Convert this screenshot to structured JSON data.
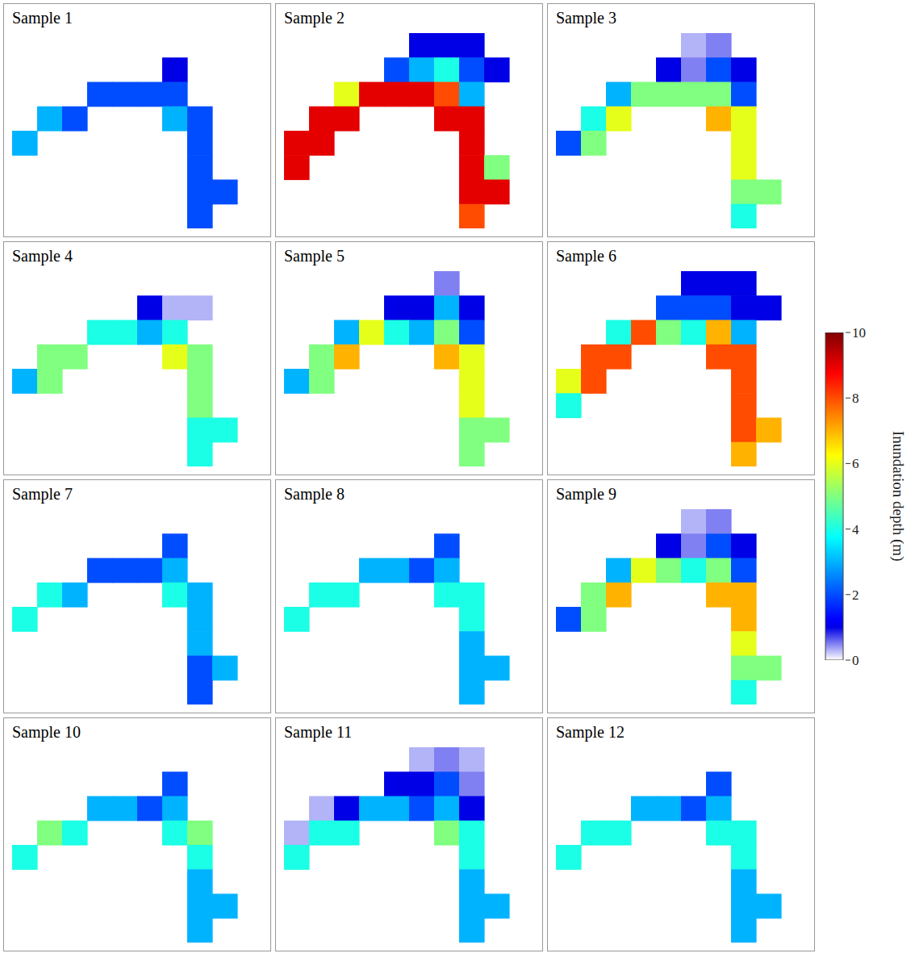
{
  "chart_data": [
    {
      "type": "heatmap",
      "title": "Sample 1",
      "tick_labels": false,
      "cells": [
        [
          null,
          null,
          null,
          null,
          null,
          null,
          null,
          null,
          null,
          null
        ],
        [
          null,
          null,
          null,
          null,
          null,
          null,
          1,
          null,
          null,
          null
        ],
        [
          null,
          null,
          null,
          2,
          2,
          2,
          2,
          null,
          null,
          null
        ],
        [
          null,
          3,
          2,
          null,
          null,
          null,
          3,
          2,
          null,
          null
        ],
        [
          3,
          null,
          null,
          null,
          null,
          null,
          null,
          2,
          null,
          null
        ],
        [
          null,
          null,
          null,
          null,
          null,
          null,
          null,
          2,
          null,
          null
        ],
        [
          null,
          null,
          null,
          null,
          null,
          null,
          null,
          2,
          2,
          null
        ],
        [
          null,
          null,
          null,
          null,
          null,
          null,
          null,
          2,
          null,
          null
        ]
      ]
    },
    {
      "type": "heatmap",
      "title": "Sample 2",
      "tick_labels": false,
      "cells": [
        [
          null,
          null,
          null,
          null,
          null,
          1,
          1,
          1,
          null,
          null
        ],
        [
          null,
          null,
          null,
          null,
          2,
          3,
          4,
          2,
          1,
          null
        ],
        [
          null,
          null,
          6,
          9,
          9,
          9,
          8,
          3,
          null,
          null
        ],
        [
          null,
          9,
          9,
          null,
          null,
          null,
          9,
          9,
          null,
          null
        ],
        [
          9,
          9,
          null,
          null,
          null,
          null,
          null,
          9,
          null,
          null
        ],
        [
          9,
          null,
          null,
          null,
          null,
          null,
          null,
          9,
          5,
          null
        ],
        [
          null,
          null,
          null,
          null,
          null,
          null,
          null,
          9,
          9,
          null
        ],
        [
          null,
          null,
          null,
          null,
          null,
          null,
          null,
          8,
          null,
          null
        ]
      ]
    },
    {
      "type": "heatmap",
      "title": "Sample 3",
      "tick_labels": false,
      "cells": [
        [
          null,
          null,
          null,
          null,
          null,
          0.3,
          0.5,
          null,
          null,
          null
        ],
        [
          null,
          null,
          null,
          null,
          1,
          0.5,
          2,
          1,
          null,
          null
        ],
        [
          null,
          null,
          3,
          5,
          5,
          5,
          5,
          2,
          null,
          null
        ],
        [
          null,
          4,
          6,
          null,
          null,
          null,
          7,
          6,
          null,
          null
        ],
        [
          2,
          5,
          null,
          null,
          null,
          null,
          null,
          6,
          null,
          null
        ],
        [
          null,
          null,
          null,
          null,
          null,
          null,
          null,
          6,
          null,
          null
        ],
        [
          null,
          null,
          null,
          null,
          null,
          null,
          null,
          5,
          5,
          null
        ],
        [
          null,
          null,
          null,
          null,
          null,
          null,
          null,
          4,
          null,
          null
        ]
      ]
    },
    {
      "type": "heatmap",
      "title": "Sample 4",
      "tick_labels": false,
      "cells": [
        [
          null,
          null,
          null,
          null,
          null,
          null,
          null,
          null,
          null,
          null
        ],
        [
          null,
          null,
          null,
          null,
          null,
          1,
          0.3,
          0.3,
          null,
          null
        ],
        [
          null,
          null,
          null,
          4,
          4,
          3,
          4,
          null,
          null,
          null
        ],
        [
          null,
          5,
          5,
          null,
          null,
          null,
          6,
          5,
          null,
          null
        ],
        [
          3,
          5,
          null,
          null,
          null,
          null,
          null,
          5,
          null,
          null
        ],
        [
          null,
          null,
          null,
          null,
          null,
          null,
          null,
          5,
          null,
          null
        ],
        [
          null,
          null,
          null,
          null,
          null,
          null,
          null,
          4,
          4,
          null
        ],
        [
          null,
          null,
          null,
          null,
          null,
          null,
          null,
          4,
          null,
          null
        ]
      ]
    },
    {
      "type": "heatmap",
      "title": "Sample 5",
      "tick_labels": false,
      "cells": [
        [
          null,
          null,
          null,
          null,
          null,
          null,
          0.5,
          null,
          null,
          null
        ],
        [
          null,
          null,
          null,
          null,
          1,
          1,
          3,
          1,
          null,
          null
        ],
        [
          null,
          null,
          3,
          6,
          4,
          3,
          5,
          2,
          null,
          null
        ],
        [
          null,
          5,
          7,
          null,
          null,
          null,
          7,
          6,
          null,
          null
        ],
        [
          3,
          5,
          null,
          null,
          null,
          null,
          null,
          6,
          null,
          null
        ],
        [
          null,
          null,
          null,
          null,
          null,
          null,
          null,
          6,
          null,
          null
        ],
        [
          null,
          null,
          null,
          null,
          null,
          null,
          null,
          5,
          5,
          null
        ],
        [
          null,
          null,
          null,
          null,
          null,
          null,
          null,
          5,
          null,
          null
        ]
      ]
    },
    {
      "type": "heatmap",
      "title": "Sample 6",
      "tick_labels": false,
      "cells": [
        [
          null,
          null,
          null,
          null,
          null,
          1,
          1,
          1,
          null,
          null
        ],
        [
          null,
          null,
          null,
          null,
          2,
          2,
          2,
          1,
          1,
          null
        ],
        [
          null,
          null,
          4,
          8,
          5,
          4,
          7,
          3,
          null,
          null
        ],
        [
          null,
          8,
          8,
          null,
          null,
          null,
          8,
          8,
          null,
          null
        ],
        [
          6,
          8,
          null,
          null,
          null,
          null,
          null,
          8,
          null,
          null
        ],
        [
          4,
          null,
          null,
          null,
          null,
          null,
          null,
          8,
          null,
          null
        ],
        [
          null,
          null,
          null,
          null,
          null,
          null,
          null,
          8,
          7,
          null
        ],
        [
          null,
          null,
          null,
          null,
          null,
          null,
          null,
          7,
          null,
          null
        ]
      ]
    },
    {
      "type": "heatmap",
      "title": "Sample 7",
      "tick_labels": false,
      "cells": [
        [
          null,
          null,
          null,
          null,
          null,
          null,
          null,
          null,
          null,
          null
        ],
        [
          null,
          null,
          null,
          null,
          null,
          null,
          2,
          null,
          null,
          null
        ],
        [
          null,
          null,
          null,
          2,
          2,
          2,
          3,
          null,
          null,
          null
        ],
        [
          null,
          4,
          3,
          null,
          null,
          null,
          4,
          3,
          null,
          null
        ],
        [
          4,
          null,
          null,
          null,
          null,
          null,
          null,
          3,
          null,
          null
        ],
        [
          null,
          null,
          null,
          null,
          null,
          null,
          null,
          3,
          null,
          null
        ],
        [
          null,
          null,
          null,
          null,
          null,
          null,
          null,
          2,
          3,
          null
        ],
        [
          null,
          null,
          null,
          null,
          null,
          null,
          null,
          2,
          null,
          null
        ]
      ]
    },
    {
      "type": "heatmap",
      "title": "Sample 8",
      "tick_labels": false,
      "cells": [
        [
          null,
          null,
          null,
          null,
          null,
          null,
          null,
          null,
          null,
          null
        ],
        [
          null,
          null,
          null,
          null,
          null,
          null,
          2,
          null,
          null,
          null
        ],
        [
          null,
          null,
          null,
          3,
          3,
          2,
          3,
          null,
          null,
          null
        ],
        [
          null,
          4,
          4,
          null,
          null,
          null,
          4,
          4,
          null,
          null
        ],
        [
          4,
          null,
          null,
          null,
          null,
          null,
          null,
          4,
          null,
          null
        ],
        [
          null,
          null,
          null,
          null,
          null,
          null,
          null,
          3,
          null,
          null
        ],
        [
          null,
          null,
          null,
          null,
          null,
          null,
          null,
          3,
          3,
          null
        ],
        [
          null,
          null,
          null,
          null,
          null,
          null,
          null,
          3,
          null,
          null
        ]
      ]
    },
    {
      "type": "heatmap",
      "title": "Sample 9",
      "tick_labels": false,
      "cells": [
        [
          null,
          null,
          null,
          null,
          null,
          0.3,
          0.5,
          null,
          null,
          null
        ],
        [
          null,
          null,
          null,
          null,
          1,
          0.5,
          2,
          1,
          null,
          null
        ],
        [
          null,
          null,
          3,
          6,
          5,
          4,
          5,
          2,
          null,
          null
        ],
        [
          null,
          5,
          7,
          null,
          null,
          null,
          7,
          7,
          null,
          null
        ],
        [
          2,
          5,
          null,
          null,
          null,
          null,
          null,
          7,
          null,
          null
        ],
        [
          null,
          null,
          null,
          null,
          null,
          null,
          null,
          6,
          null,
          null
        ],
        [
          null,
          null,
          null,
          null,
          null,
          null,
          null,
          5,
          5,
          null
        ],
        [
          null,
          null,
          null,
          null,
          null,
          null,
          null,
          4,
          null,
          null
        ]
      ]
    },
    {
      "type": "heatmap",
      "title": "Sample 10",
      "tick_labels": false,
      "cells": [
        [
          null,
          null,
          null,
          null,
          null,
          null,
          null,
          null,
          null,
          null
        ],
        [
          null,
          null,
          null,
          null,
          null,
          null,
          2,
          null,
          null,
          null
        ],
        [
          null,
          null,
          null,
          3,
          3,
          2,
          3,
          null,
          null,
          null
        ],
        [
          null,
          5,
          4,
          null,
          null,
          null,
          4,
          5,
          null,
          null
        ],
        [
          4,
          null,
          null,
          null,
          null,
          null,
          null,
          4,
          null,
          null
        ],
        [
          null,
          null,
          null,
          null,
          null,
          null,
          null,
          3,
          null,
          null
        ],
        [
          null,
          null,
          null,
          null,
          null,
          null,
          null,
          3,
          3,
          null
        ],
        [
          null,
          null,
          null,
          null,
          null,
          null,
          null,
          3,
          null,
          null
        ]
      ]
    },
    {
      "type": "heatmap",
      "title": "Sample 11",
      "tick_labels": false,
      "cells": [
        [
          null,
          null,
          null,
          null,
          null,
          0.3,
          0.5,
          0.3,
          null,
          null
        ],
        [
          null,
          null,
          null,
          null,
          1,
          1,
          2,
          0.5,
          null,
          null
        ],
        [
          null,
          0.3,
          1,
          3,
          3,
          2,
          3,
          1,
          null,
          null
        ],
        [
          0.3,
          4,
          4,
          null,
          null,
          null,
          5,
          4,
          null,
          null
        ],
        [
          4,
          null,
          null,
          null,
          null,
          null,
          null,
          4,
          null,
          null
        ],
        [
          null,
          null,
          null,
          null,
          null,
          null,
          null,
          3,
          null,
          null
        ],
        [
          null,
          null,
          null,
          null,
          null,
          null,
          null,
          3,
          3,
          null
        ],
        [
          null,
          null,
          null,
          null,
          null,
          null,
          null,
          3,
          null,
          null
        ]
      ]
    },
    {
      "type": "heatmap",
      "title": "Sample 12",
      "tick_labels": false,
      "cells": [
        [
          null,
          null,
          null,
          null,
          null,
          null,
          null,
          null,
          null,
          null
        ],
        [
          null,
          null,
          null,
          null,
          null,
          null,
          2,
          null,
          null,
          null
        ],
        [
          null,
          null,
          null,
          3,
          3,
          2,
          3,
          null,
          null,
          null
        ],
        [
          null,
          4,
          4,
          null,
          null,
          null,
          4,
          4,
          null,
          null
        ],
        [
          4,
          null,
          null,
          null,
          null,
          null,
          null,
          4,
          null,
          null
        ],
        [
          null,
          null,
          null,
          null,
          null,
          null,
          null,
          3,
          null,
          null
        ],
        [
          null,
          null,
          null,
          null,
          null,
          null,
          null,
          3,
          3,
          null
        ],
        [
          null,
          null,
          null,
          null,
          null,
          null,
          null,
          3,
          null,
          null
        ]
      ]
    }
  ],
  "colorbar": {
    "range": [
      0,
      10
    ],
    "ticks": [
      0,
      2,
      4,
      6,
      8,
      10
    ],
    "label": "Inundation depth (m)"
  }
}
